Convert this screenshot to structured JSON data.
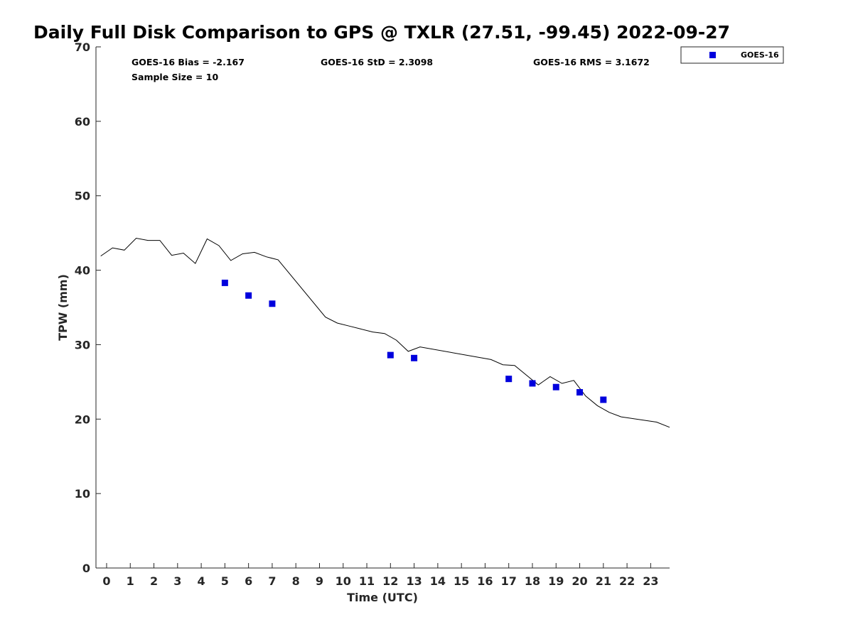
{
  "chart_data": {
    "type": "scatter",
    "title": "Daily Full Disk Comparison to GPS @ TXLR (27.51, -99.45) 2022-09-27",
    "xlabel": "Time (UTC)",
    "ylabel": "TPW (mm)",
    "xlim": [
      -0.45,
      23.8
    ],
    "ylim": [
      0,
      70
    ],
    "x_ticks": [
      "0",
      "1",
      "2",
      "3",
      "4",
      "5",
      "6",
      "7",
      "8",
      "9",
      "10",
      "11",
      "12",
      "13",
      "14",
      "15",
      "16",
      "17",
      "18",
      "19",
      "20",
      "21",
      "22",
      "23"
    ],
    "y_ticks": [
      "0",
      "10",
      "20",
      "30",
      "40",
      "50",
      "60",
      "70"
    ],
    "grid": false,
    "legend_position": "top-right (outside axes)",
    "stats": {
      "bias": "GOES-16 Bias = -2.167",
      "std": "GOES-16 StD = 2.3098",
      "rms": "GOES-16 RMS = 3.1672",
      "sample_size": "Sample Size = 10"
    },
    "gps_line": {
      "color": "#000000",
      "x": [
        -0.25,
        0.25,
        0.75,
        1.25,
        1.75,
        2.25,
        2.75,
        3.25,
        3.75,
        4.25,
        4.75,
        5.25,
        5.75,
        6.25,
        6.75,
        7.25,
        9.25,
        9.75,
        10.25,
        10.75,
        11.25,
        11.75,
        12.25,
        12.75,
        13.25,
        16.25,
        16.75,
        17.25,
        18.25,
        18.75,
        19.25,
        19.75,
        20.25,
        20.75,
        21.25,
        21.75,
        23.25,
        23.8
      ],
      "y": [
        41.9,
        43.0,
        42.7,
        44.3,
        44.0,
        44.0,
        42.0,
        42.3,
        40.9,
        44.2,
        43.3,
        41.3,
        42.2,
        42.4,
        41.8,
        41.4,
        33.7,
        32.9,
        32.5,
        32.1,
        31.7,
        31.5,
        30.6,
        29.1,
        29.7,
        28.0,
        27.3,
        27.2,
        24.6,
        25.7,
        24.8,
        25.2,
        23.1,
        21.8,
        20.9,
        20.3,
        19.6,
        18.9
      ]
    },
    "series": [
      {
        "name": "GOES-16",
        "color": "#0000dd",
        "marker": "square",
        "x": [
          5,
          6,
          7,
          12,
          13,
          17,
          18,
          19,
          20,
          21
        ],
        "y": [
          38.3,
          36.6,
          35.5,
          28.6,
          28.2,
          25.4,
          24.8,
          24.3,
          23.6,
          22.6
        ]
      }
    ]
  }
}
